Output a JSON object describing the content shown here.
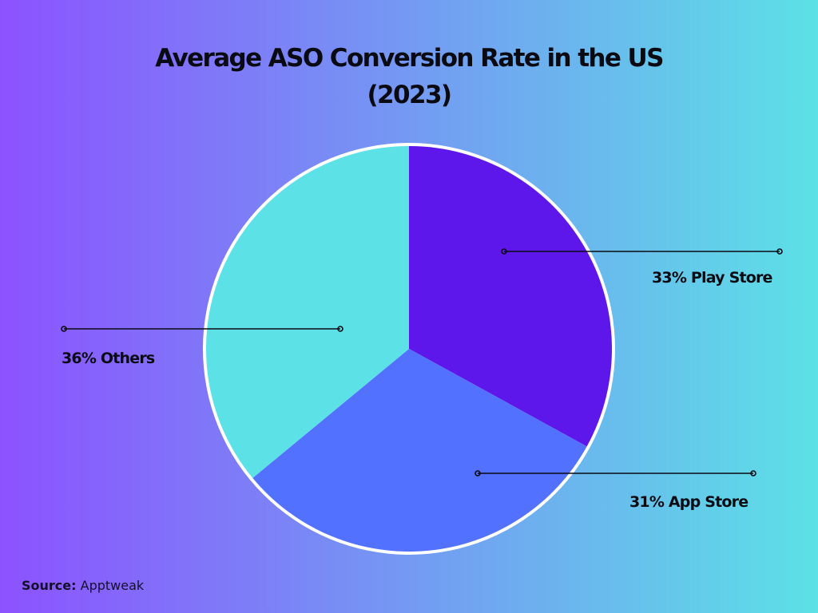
{
  "chart_data": {
    "type": "pie",
    "title": "Average ASO Conversion Rate in the US",
    "subtitle": "(2023)",
    "start": "top",
    "direction": "clockwise",
    "slices": [
      {
        "label": "Play Store",
        "value": 33,
        "display": "33% Play Store",
        "color": "#5e17eb"
      },
      {
        "label": "App Store",
        "value": 31,
        "display": "31% App Store",
        "color": "#5271ff"
      },
      {
        "label": "Others",
        "value": 36,
        "display": "36% Others",
        "color": "#5ce1e6"
      }
    ],
    "legend": "none",
    "slice_border_color": "#ffffff"
  },
  "source": {
    "prefix": "Source:",
    "name": "Apptweak"
  },
  "colors": {
    "background_start": "#8c52ff",
    "background_end": "#5ce1e6",
    "leader_line": "#0b0b14"
  }
}
